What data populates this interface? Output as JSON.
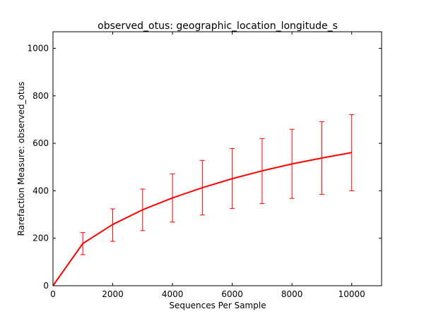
{
  "chart_data": {
    "type": "line",
    "title": "observed_otus: geographic_location_longitude_s",
    "xlabel": "Sequences Per Sample",
    "ylabel": "Rarefaction Measure: observed_otus",
    "xlim": [
      0,
      11000
    ],
    "ylim": [
      0,
      1070
    ],
    "x_ticks": [
      0,
      2000,
      4000,
      6000,
      8000,
      10000
    ],
    "x_tick_labels": [
      "0",
      "2000",
      "4000",
      "6000",
      "8000",
      "10000"
    ],
    "y_ticks": [
      0,
      200,
      400,
      600,
      800,
      1000
    ],
    "y_tick_labels": [
      "0",
      "200",
      "400",
      "600",
      "800",
      "1000"
    ],
    "grid": false,
    "legend": "none",
    "series": [
      {
        "color": "#ff0000",
        "x": [
          0,
          1000,
          2000,
          3000,
          4000,
          5000,
          6000,
          7000,
          8000,
          9000,
          10000
        ],
        "y": [
          0,
          178,
          258,
          320,
          370,
          413,
          451,
          484,
          513,
          538,
          561
        ],
        "y_err_low": [
          null,
          131,
          187,
          232,
          268,
          298,
          325,
          346,
          368,
          385,
          400
        ],
        "y_err_high": [
          null,
          224,
          324,
          407,
          471,
          528,
          578,
          620,
          659,
          691,
          721
        ]
      }
    ]
  }
}
